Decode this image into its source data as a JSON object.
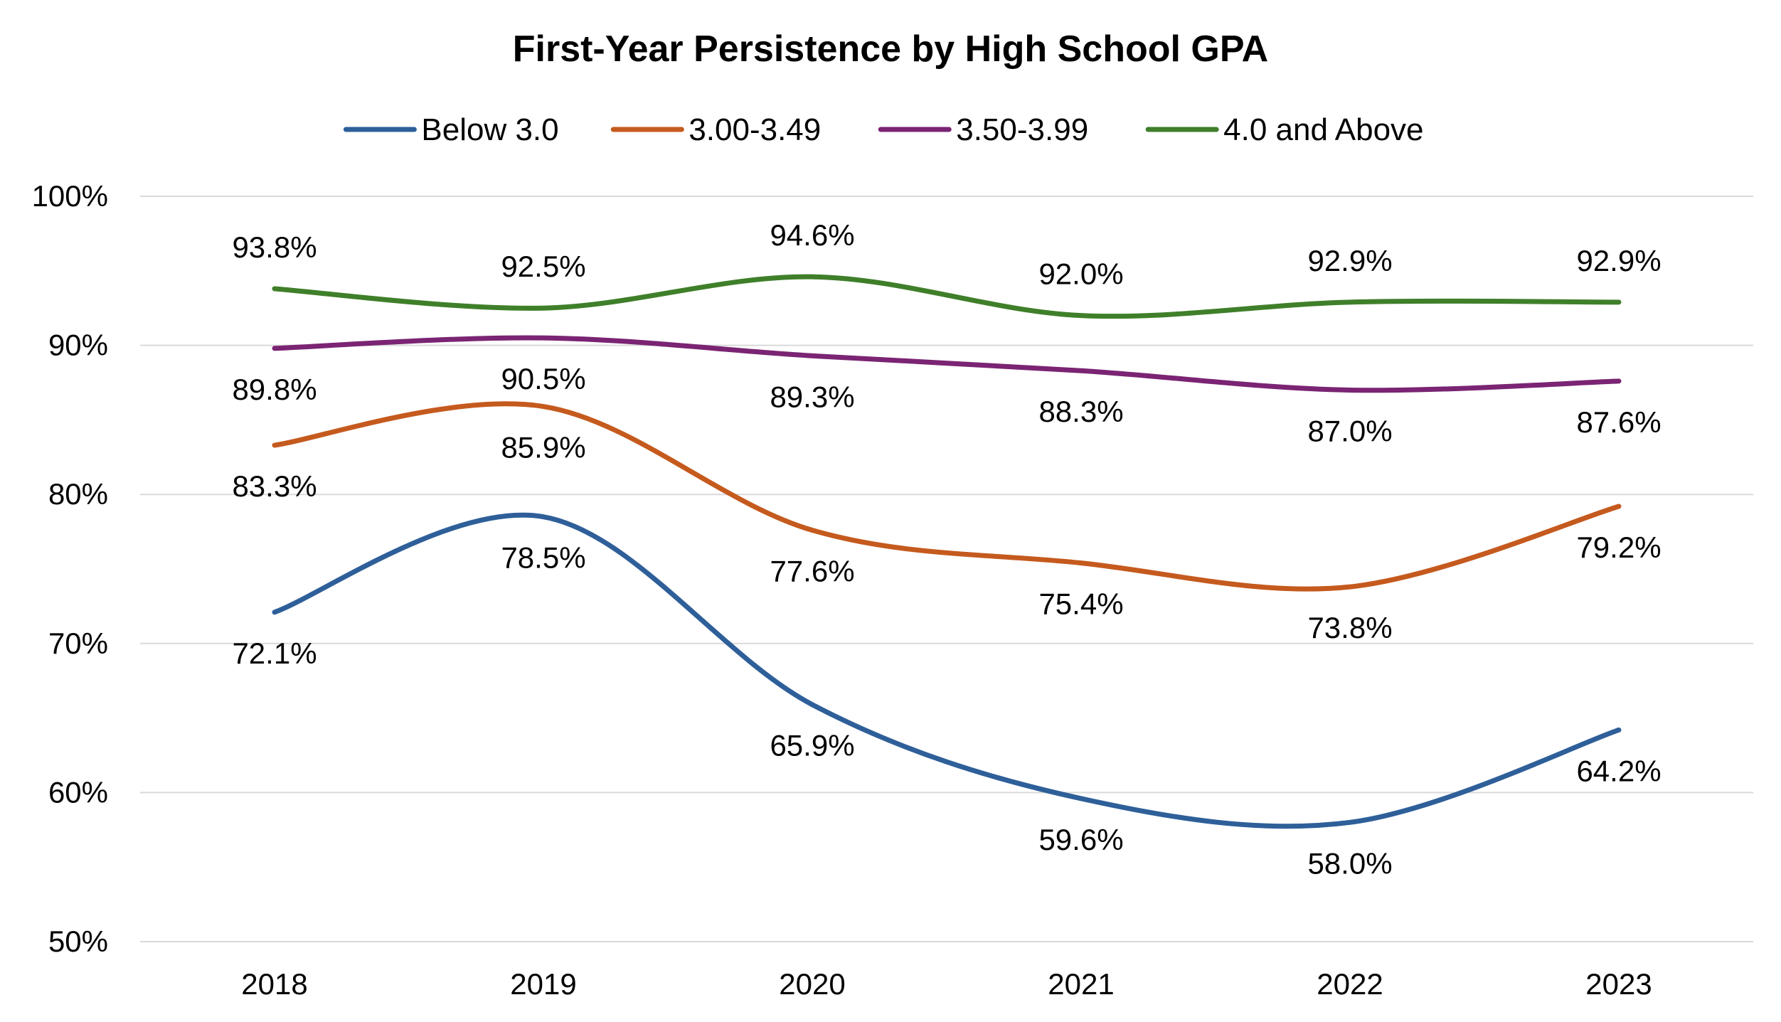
{
  "chart_data": {
    "type": "line",
    "title": "First-Year Persistence by High School GPA",
    "categories": [
      "2018",
      "2019",
      "2020",
      "2021",
      "2022",
      "2023"
    ],
    "series": [
      {
        "name": "Below 3.0",
        "color": "#2E5F99",
        "values": [
          72.1,
          78.5,
          65.9,
          59.6,
          58.0,
          64.2
        ],
        "labels": [
          "72.1%",
          "78.5%",
          "65.9%",
          "59.6%",
          "58.0%",
          "64.2%"
        ],
        "label_position": "below"
      },
      {
        "name": "3.00-3.49",
        "color": "#C55A1E",
        "values": [
          83.3,
          85.9,
          77.6,
          75.4,
          73.8,
          79.2
        ],
        "labels": [
          "83.3%",
          "85.9%",
          "77.6%",
          "75.4%",
          "73.8%",
          "79.2%"
        ],
        "label_position": "below"
      },
      {
        "name": "3.50-3.99",
        "color": "#7A2473",
        "values": [
          89.8,
          90.5,
          89.3,
          88.3,
          87.0,
          87.6
        ],
        "labels": [
          "89.8%",
          "90.5%",
          "89.3%",
          "88.3%",
          "87.0%",
          "87.6%"
        ],
        "label_position": "below"
      },
      {
        "name": "4.0 and Above",
        "color": "#3F7F2A",
        "values": [
          93.8,
          92.5,
          94.6,
          92.0,
          92.9,
          92.9
        ],
        "labels": [
          "93.8%",
          "92.5%",
          "94.6%",
          "92.0%",
          "92.9%",
          "92.9%"
        ],
        "label_position": "above"
      }
    ],
    "ylim": [
      50,
      100
    ],
    "yticks": [
      50,
      60,
      70,
      80,
      90,
      100
    ],
    "ytick_labels": [
      "50%",
      "60%",
      "70%",
      "80%",
      "90%",
      "100%"
    ],
    "xlabel": "",
    "ylabel": "",
    "grid": true,
    "legend_position": "top",
    "smoothed": true
  },
  "colors": {
    "gridline": "#D9D9D9",
    "text": "#000000",
    "background": "#FFFFFF"
  }
}
